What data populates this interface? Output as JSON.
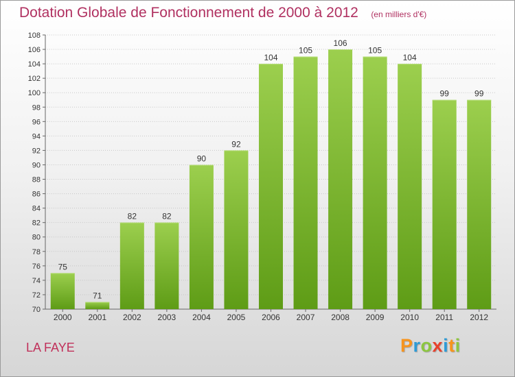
{
  "chart_data": {
    "type": "bar",
    "title": "Dotation Globale de Fonctionnement de 2000 à 2012",
    "subtitle": "(en milliers d'€)",
    "categories": [
      "2000",
      "2001",
      "2002",
      "2003",
      "2004",
      "2005",
      "2006",
      "2007",
      "2008",
      "2009",
      "2010",
      "2011",
      "2012"
    ],
    "values": [
      75,
      71,
      82,
      82,
      90,
      92,
      104,
      105,
      106,
      105,
      104,
      99,
      99
    ],
    "ylim": [
      70,
      108
    ],
    "yticks": [
      70,
      72,
      74,
      76,
      78,
      80,
      82,
      84,
      86,
      88,
      90,
      92,
      94,
      96,
      98,
      100,
      102,
      104,
      106,
      108
    ],
    "grid": true,
    "bar_color": "#7cba3a"
  },
  "footer": {
    "commune": "LA FAYE",
    "logo_letters": [
      "P",
      "r",
      "o",
      "x",
      "i",
      "t",
      "i"
    ],
    "logo_colors": [
      "#f7941d",
      "#2e9bd6",
      "#8cc63f",
      "#e8412c",
      "#2e9bd6",
      "#f7941d",
      "#8cc63f"
    ]
  }
}
